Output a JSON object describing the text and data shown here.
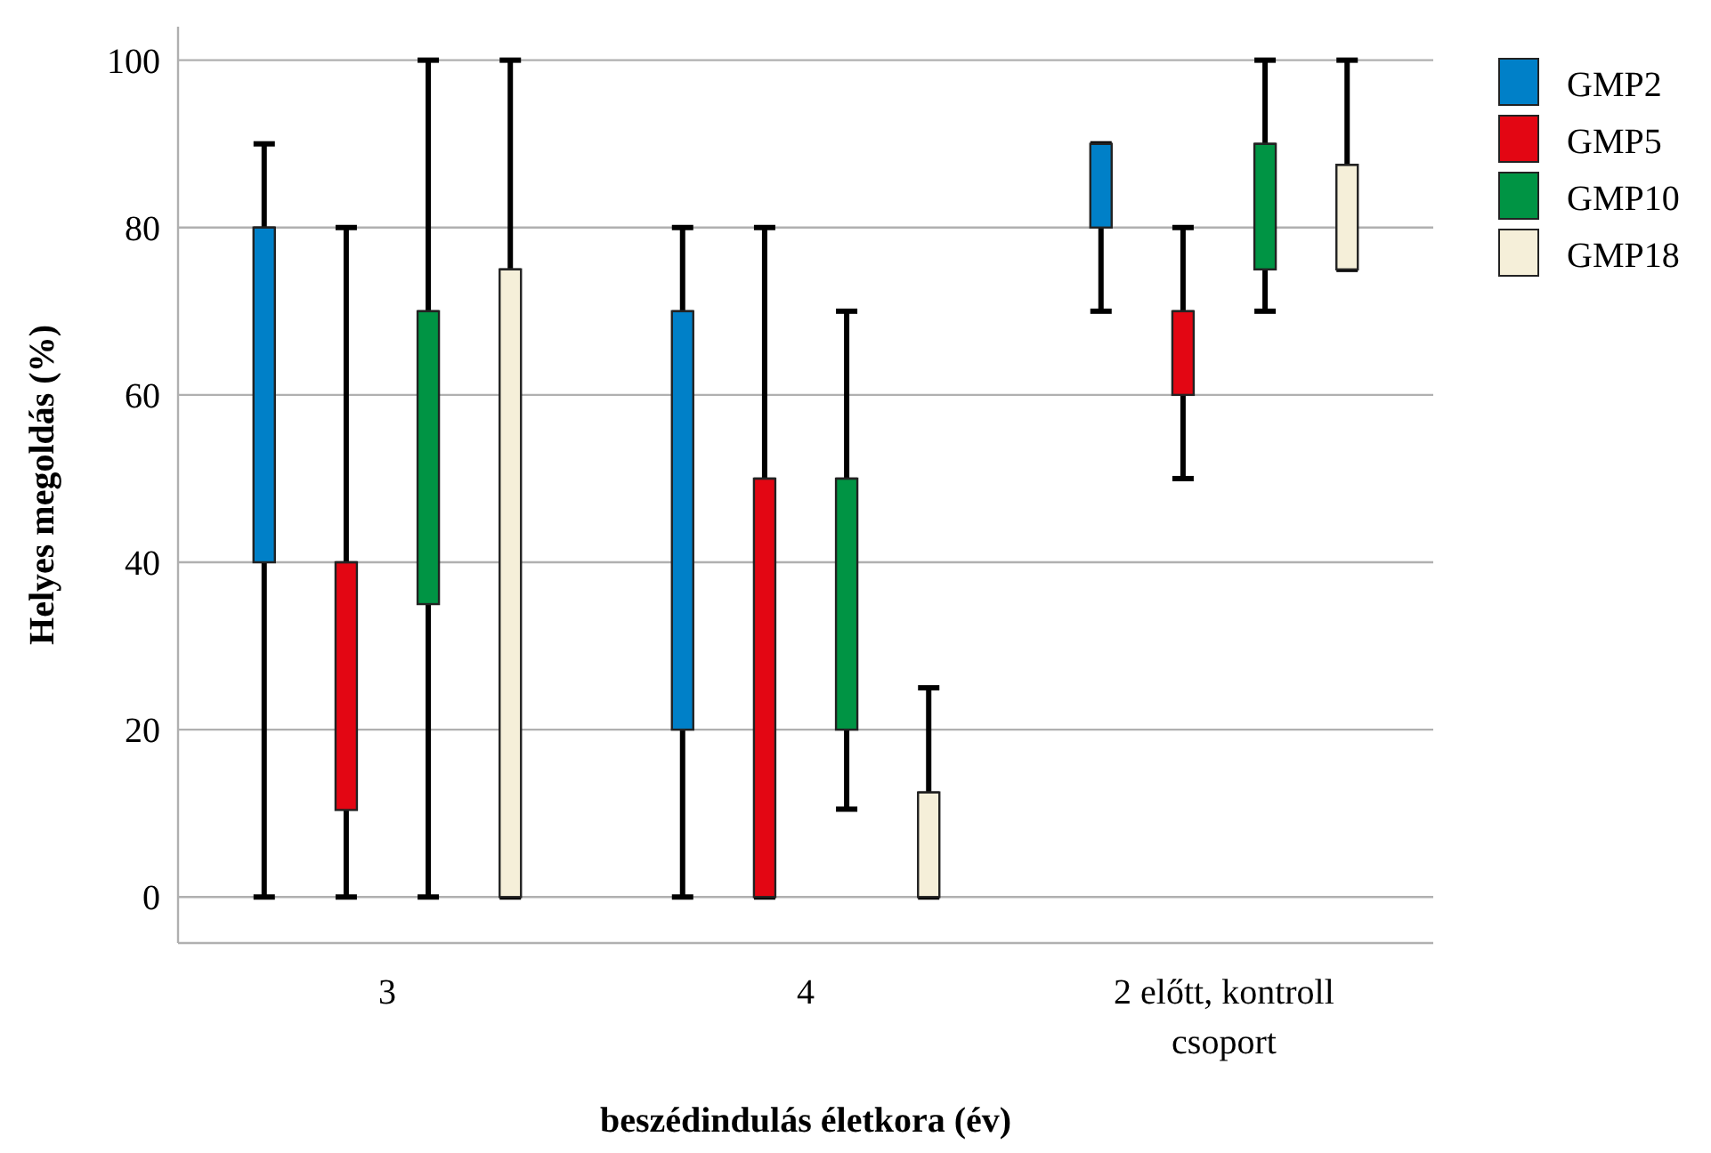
{
  "chart_data": {
    "type": "box",
    "xlabel": "beszédindulás életkora (év)",
    "ylabel": "Helyes megoldás (%)",
    "categories": [
      "3",
      "4",
      "2 előtt, kontroll csoport"
    ],
    "ylim": [
      -5.5,
      104
    ],
    "yticks": [
      0,
      20,
      40,
      60,
      80,
      100
    ],
    "grid": "y",
    "legend": "top right",
    "series": [
      {
        "name": "GMP2",
        "color": "#0080c8",
        "boxes": [
          {
            "low": 0,
            "q1": 40,
            "median": 80,
            "q3": 80,
            "high": 90
          },
          {
            "low": 0,
            "q1": 20,
            "median": 70,
            "q3": 70,
            "high": 80
          },
          {
            "low": 70,
            "q1": 80,
            "median": 90,
            "q3": 90,
            "high": 90
          }
        ]
      },
      {
        "name": "GMP5",
        "color": "#e30613",
        "boxes": [
          {
            "low": 0,
            "q1": 10.4,
            "median": 40,
            "q3": 40,
            "high": 80
          },
          {
            "low": 0,
            "q1": 0,
            "median": 50,
            "q3": 50,
            "high": 80
          },
          {
            "low": 50,
            "q1": 60,
            "median": 70,
            "q3": 70,
            "high": 80
          }
        ]
      },
      {
        "name": "GMP10",
        "color": "#009444",
        "boxes": [
          {
            "low": 0,
            "q1": 35,
            "median": 70,
            "q3": 70,
            "high": 100
          },
          {
            "low": 10.5,
            "q1": 20,
            "median": 50,
            "q3": 50,
            "high": 70
          },
          {
            "low": 70,
            "q1": 75,
            "median": 90,
            "q3": 90,
            "high": 100
          }
        ]
      },
      {
        "name": "GMP18",
        "color": "#f5efd9",
        "boxes": [
          {
            "low": 0,
            "q1": 0,
            "median": 75,
            "q3": 75,
            "high": 100
          },
          {
            "low": 0,
            "q1": 0,
            "median": 12.5,
            "q3": 12.5,
            "high": 25
          },
          {
            "low": 75,
            "q1": 75,
            "median": 87.5,
            "q3": 87.5,
            "high": 100
          }
        ]
      }
    ]
  }
}
